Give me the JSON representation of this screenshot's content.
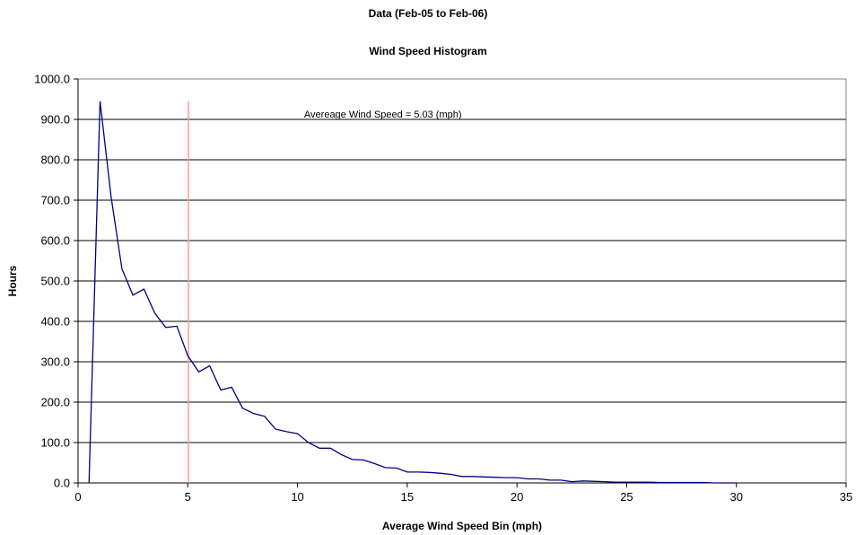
{
  "chart_data": {
    "type": "line",
    "title": "Data (Feb-05 to Feb-06)",
    "subtitle": "Wind Speed Histogram",
    "xlabel": "Average Wind Speed Bin (mph)",
    "ylabel": "Hours",
    "xlim": [
      0,
      35
    ],
    "ylim": [
      0,
      1000
    ],
    "x_ticks": [
      "0",
      "5",
      "10",
      "15",
      "20",
      "25",
      "30",
      "35"
    ],
    "y_ticks": [
      "0.0",
      "100.0",
      "200.0",
      "300.0",
      "400.0",
      "500.0",
      "600.0",
      "700.0",
      "800.0",
      "900.0",
      "1000.0"
    ],
    "grid": "horizontal",
    "series": [
      {
        "color": "#000080",
        "x": [
          0.5,
          1.0,
          1.5,
          2.0,
          2.5,
          3.0,
          3.5,
          4.0,
          4.5,
          5.0,
          5.5,
          6.0,
          6.5,
          7.0,
          7.5,
          8.0,
          8.5,
          9.0,
          9.5,
          10.0,
          10.5,
          11.0,
          11.5,
          12.0,
          12.5,
          13.0,
          13.5,
          14.0,
          14.5,
          15.0,
          15.5,
          16.0,
          16.5,
          17.0,
          17.5,
          18.0,
          18.5,
          19.0,
          19.5,
          20.0,
          20.5,
          21.0,
          21.5,
          22.0,
          22.5,
          23.0,
          23.5,
          24.0,
          24.5,
          25.0,
          25.5,
          26.0,
          26.5,
          27.0,
          27.5,
          28.0,
          28.5,
          29.0,
          29.5,
          30.0
        ],
        "values": [
          0,
          945,
          710,
          530,
          465,
          480,
          420,
          385,
          388,
          315,
          275,
          290,
          230,
          237,
          185,
          172,
          165,
          133,
          127,
          122,
          100,
          86,
          86,
          70,
          58,
          57,
          48,
          38,
          37,
          27,
          27,
          26,
          24,
          21,
          16,
          16,
          15,
          14,
          13,
          13,
          10,
          10,
          7,
          7,
          3,
          5,
          4,
          3,
          2,
          2,
          2,
          2,
          1,
          1,
          1,
          1,
          1,
          0,
          0,
          0
        ]
      }
    ],
    "reference_line": {
      "x": 5.03,
      "y_top": 945,
      "color": "#ff9999"
    },
    "annotation": {
      "text": "Avereage Wind Speed = 5.03 (mph)",
      "x": 10.3,
      "y": 940
    }
  }
}
